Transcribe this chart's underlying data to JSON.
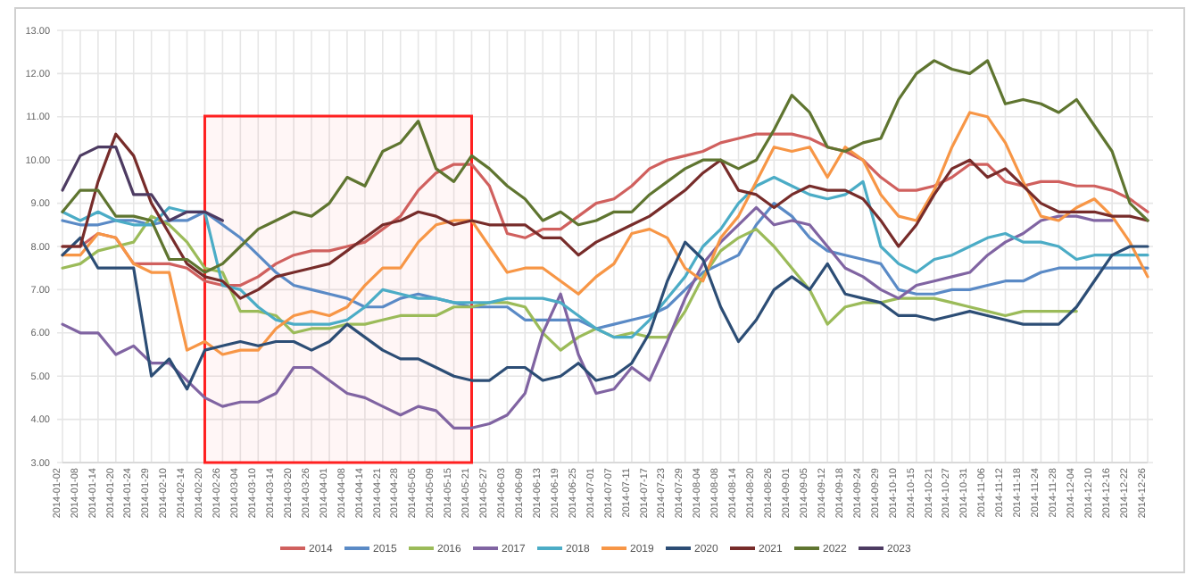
{
  "chart_data": {
    "type": "line",
    "categories": [
      "2014-01-02",
      "2014-01-08",
      "2014-01-14",
      "2014-01-20",
      "2014-01-24",
      "2014-01-29",
      "2014-02-10",
      "2014-02-14",
      "2014-02-20",
      "2014-02-26",
      "2014-03-04",
      "2014-03-10",
      "2014-03-14",
      "2014-03-20",
      "2014-03-26",
      "2014-04-01",
      "2014-04-08",
      "2014-04-14",
      "2014-04-21",
      "2014-04-28",
      "2014-05-05",
      "2014-05-09",
      "2014-05-15",
      "2014-05-21",
      "2014-05-27",
      "2014-06-03",
      "2014-06-09",
      "2014-06-13",
      "2014-06-19",
      "2014-06-25",
      "2014-07-01",
      "2014-07-07",
      "2014-07-11",
      "2014-07-17",
      "2014-07-23",
      "2014-07-29",
      "2014-08-04",
      "2014-08-08",
      "2014-08-14",
      "2014-08-20",
      "2014-08-26",
      "2014-09-01",
      "2014-09-05",
      "2014-09-12",
      "2014-09-18",
      "2014-09-24",
      "2014-09-29",
      "2014-10-10",
      "2014-10-15",
      "2014-10-21",
      "2014-10-27",
      "2014-10-31",
      "2014-11-06",
      "2014-11-12",
      "2014-11-18",
      "2014-11-24",
      "2014-11-28",
      "2014-12-04",
      "2014-12-10",
      "2014-12-16",
      "2014-12-22",
      "2014-12-26"
    ],
    "series": [
      {
        "name": "2014",
        "color": "#d0605e",
        "values": [
          8.0,
          8.0,
          8.3,
          8.2,
          7.6,
          7.6,
          7.6,
          7.5,
          7.2,
          7.1,
          7.1,
          7.3,
          7.6,
          7.8,
          7.9,
          7.9,
          8.0,
          8.1,
          8.4,
          8.7,
          9.3,
          9.7,
          9.9,
          9.9,
          9.4,
          8.3,
          8.2,
          8.4,
          8.4,
          8.7,
          9.0,
          9.1,
          9.4,
          9.8,
          10.0,
          10.1,
          10.2,
          10.4,
          10.5,
          10.6,
          10.6,
          10.6,
          10.5,
          10.3,
          10.2,
          10.0,
          9.6,
          9.3,
          9.3,
          9.4,
          9.6,
          9.9,
          9.9,
          9.5,
          9.4,
          9.5,
          9.5,
          9.4,
          9.4,
          9.3,
          9.1,
          8.8
        ]
      },
      {
        "name": "2015",
        "color": "#5a8ac6",
        "values": [
          8.6,
          8.5,
          8.5,
          8.6,
          8.6,
          8.5,
          8.6,
          8.6,
          8.8,
          8.5,
          8.2,
          7.8,
          7.4,
          7.1,
          7.0,
          6.9,
          6.8,
          6.6,
          6.6,
          6.8,
          6.9,
          6.8,
          6.7,
          6.6,
          6.6,
          6.6,
          6.3,
          6.3,
          6.3,
          6.3,
          6.1,
          6.2,
          6.3,
          6.4,
          6.6,
          7.0,
          7.4,
          7.6,
          7.8,
          8.5,
          9.0,
          8.7,
          8.2,
          7.9,
          7.8,
          7.7,
          7.6,
          7.0,
          6.9,
          6.9,
          7.0,
          7.0,
          7.1,
          7.2,
          7.2,
          7.4,
          7.5,
          7.5,
          7.5,
          7.5,
          7.5,
          7.5
        ]
      },
      {
        "name": "2016",
        "color": "#9bbb59",
        "values": [
          7.5,
          7.6,
          7.9,
          8.0,
          8.1,
          8.7,
          8.5,
          8.1,
          7.5,
          7.4,
          6.5,
          6.5,
          6.4,
          6.0,
          6.1,
          6.1,
          6.2,
          6.2,
          6.3,
          6.4,
          6.4,
          6.4,
          6.6,
          6.6,
          6.7,
          6.7,
          6.6,
          6.0,
          5.6,
          5.9,
          6.1,
          5.9,
          6.0,
          5.9,
          5.9,
          6.5,
          7.3,
          7.9,
          8.2,
          8.4,
          8.0,
          7.5,
          7.0,
          6.2,
          6.6,
          6.7,
          6.7,
          6.8,
          6.8,
          6.8,
          6.7,
          6.6,
          6.5,
          6.4,
          6.5,
          6.5,
          6.5,
          6.5,
          null,
          null,
          null,
          null
        ]
      },
      {
        "name": "2017",
        "color": "#8064a2",
        "values": [
          6.2,
          6.0,
          6.0,
          5.5,
          5.7,
          5.3,
          5.3,
          4.9,
          4.5,
          4.3,
          4.4,
          4.4,
          4.6,
          5.2,
          5.2,
          4.9,
          4.6,
          4.5,
          4.3,
          4.1,
          4.3,
          4.2,
          3.8,
          3.8,
          3.9,
          4.1,
          4.6,
          6.0,
          6.9,
          5.5,
          4.6,
          4.7,
          5.2,
          4.9,
          5.8,
          6.8,
          7.6,
          8.1,
          8.5,
          8.9,
          8.5,
          8.6,
          8.5,
          8.0,
          7.5,
          7.3,
          7.0,
          6.8,
          7.1,
          7.2,
          7.3,
          7.4,
          7.8,
          8.1,
          8.3,
          8.6,
          8.7,
          8.7,
          8.6,
          8.6,
          null,
          null
        ]
      },
      {
        "name": "2018",
        "color": "#4bacc6",
        "values": [
          8.8,
          8.6,
          8.8,
          8.6,
          8.5,
          8.5,
          8.9,
          8.8,
          8.8,
          7.1,
          7.0,
          6.6,
          6.3,
          6.2,
          6.2,
          6.2,
          6.3,
          6.6,
          7.0,
          6.9,
          6.8,
          6.8,
          6.7,
          6.7,
          6.7,
          6.8,
          6.8,
          6.8,
          6.7,
          6.4,
          6.1,
          5.9,
          5.9,
          6.3,
          6.8,
          7.3,
          8.0,
          8.4,
          9.0,
          9.4,
          9.6,
          9.4,
          9.2,
          9.1,
          9.2,
          9.5,
          8.0,
          7.6,
          7.4,
          7.7,
          7.8,
          8.0,
          8.2,
          8.3,
          8.1,
          8.1,
          8.0,
          7.7,
          7.8,
          7.8,
          7.8,
          7.8
        ]
      },
      {
        "name": "2019",
        "color": "#f79646",
        "values": [
          7.8,
          7.8,
          8.3,
          8.2,
          7.6,
          7.4,
          7.4,
          5.6,
          5.8,
          5.5,
          5.6,
          5.6,
          6.1,
          6.4,
          6.5,
          6.4,
          6.6,
          7.1,
          7.5,
          7.5,
          8.1,
          8.5,
          8.6,
          8.6,
          8.0,
          7.4,
          7.5,
          7.5,
          7.2,
          6.9,
          7.3,
          7.6,
          8.3,
          8.4,
          8.2,
          7.5,
          7.2,
          8.2,
          8.7,
          9.5,
          10.3,
          10.2,
          10.3,
          9.6,
          10.3,
          10.0,
          9.2,
          8.7,
          8.6,
          9.3,
          10.3,
          11.1,
          11.0,
          10.4,
          9.5,
          8.7,
          8.6,
          8.9,
          9.1,
          8.7,
          8.1,
          7.3
        ]
      },
      {
        "name": "2020",
        "color": "#2c4d75",
        "values": [
          7.8,
          8.2,
          7.5,
          7.5,
          7.5,
          5.0,
          5.4,
          4.7,
          5.6,
          5.7,
          5.8,
          5.7,
          5.8,
          5.8,
          5.6,
          5.8,
          6.2,
          5.9,
          5.6,
          5.4,
          5.4,
          5.2,
          5.0,
          4.9,
          4.9,
          5.2,
          5.2,
          4.9,
          5.0,
          5.3,
          4.9,
          5.0,
          5.3,
          6.0,
          7.2,
          8.1,
          7.7,
          6.6,
          5.8,
          6.3,
          7.0,
          7.3,
          7.0,
          7.6,
          6.9,
          6.8,
          6.7,
          6.4,
          6.4,
          6.3,
          6.4,
          6.5,
          6.4,
          6.3,
          6.2,
          6.2,
          6.2,
          6.6,
          7.2,
          7.8,
          8.0,
          8.0
        ]
      },
      {
        "name": "2021",
        "color": "#772c2a",
        "values": [
          8.0,
          8.0,
          9.5,
          10.6,
          10.1,
          9.0,
          8.3,
          7.6,
          7.3,
          7.2,
          6.8,
          7.0,
          7.3,
          7.4,
          7.5,
          7.6,
          7.9,
          8.2,
          8.5,
          8.6,
          8.8,
          8.7,
          8.5,
          8.6,
          8.5,
          8.5,
          8.5,
          8.2,
          8.2,
          7.8,
          8.1,
          8.3,
          8.5,
          8.7,
          9.0,
          9.3,
          9.7,
          10.0,
          9.3,
          9.2,
          8.9,
          9.2,
          9.4,
          9.3,
          9.3,
          9.1,
          8.6,
          8.0,
          8.5,
          9.2,
          9.8,
          10.0,
          9.6,
          9.8,
          9.4,
          9.0,
          8.8,
          8.8,
          8.8,
          8.7,
          8.7,
          8.6
        ]
      },
      {
        "name": "2022",
        "color": "#5f7530",
        "values": [
          8.8,
          9.3,
          9.3,
          8.7,
          8.7,
          8.6,
          7.7,
          7.7,
          7.4,
          7.6,
          8.0,
          8.4,
          8.6,
          8.8,
          8.7,
          9.0,
          9.6,
          9.4,
          10.2,
          10.4,
          10.9,
          9.8,
          9.5,
          10.1,
          9.8,
          9.4,
          9.1,
          8.6,
          8.8,
          8.5,
          8.6,
          8.8,
          8.8,
          9.2,
          9.5,
          9.8,
          10.0,
          10.0,
          9.8,
          10.0,
          10.7,
          11.5,
          11.1,
          10.3,
          10.2,
          10.4,
          10.5,
          11.4,
          12.0,
          12.3,
          12.1,
          12.0,
          12.3,
          11.3,
          11.4,
          11.3,
          11.1,
          11.4,
          10.8,
          10.2,
          9.0,
          8.6
        ]
      },
      {
        "name": "2023",
        "color": "#4d3b62",
        "values": [
          9.3,
          10.1,
          10.3,
          10.3,
          9.2,
          9.2,
          8.6,
          8.8,
          8.8,
          8.6,
          null,
          null,
          null,
          null,
          null,
          null,
          null,
          null,
          null,
          null,
          null,
          null,
          null,
          null,
          null,
          null,
          null,
          null,
          null,
          null,
          null,
          null,
          null,
          null,
          null,
          null,
          null,
          null,
          null,
          null,
          null,
          null,
          null,
          null,
          null,
          null,
          null,
          null,
          null,
          null,
          null,
          null,
          null,
          null,
          null,
          null,
          null,
          null,
          null,
          null,
          null,
          null
        ]
      }
    ],
    "ylim": [
      3,
      13
    ],
    "yticks": [
      {
        "value": 3,
        "label": "3.00"
      },
      {
        "value": 4,
        "label": "4.00"
      },
      {
        "value": 5,
        "label": "5.00"
      },
      {
        "value": 6,
        "label": "6.00"
      },
      {
        "value": 7,
        "label": "7.00"
      },
      {
        "value": 8,
        "label": "8.00"
      },
      {
        "value": 9,
        "label": "9.00"
      },
      {
        "value": 10,
        "label": "10.00"
      },
      {
        "value": 11,
        "label": "11.00"
      },
      {
        "value": 12,
        "label": "12.00"
      },
      {
        "value": 13,
        "label": "13.00"
      }
    ],
    "bands": [
      {
        "axis": "x",
        "from": "2014-02-20",
        "to": "2014-05-21",
        "color": "#ff2020"
      }
    ],
    "grid": true,
    "legend": "bottom",
    "marker": "none",
    "line_style": "solid"
  }
}
